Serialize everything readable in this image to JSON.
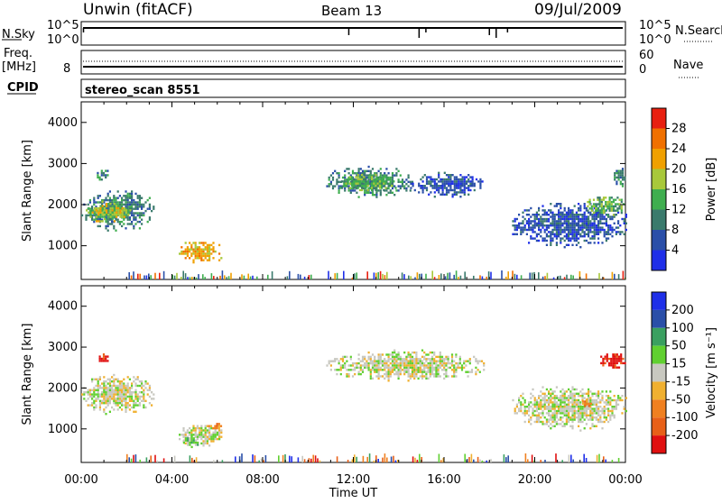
{
  "header": {
    "station": "Unwin (fitACF)",
    "beam": "Beam 13",
    "date": "09/Jul/2009"
  },
  "top_panels": {
    "noise_left_label": "N.Sky",
    "noise_right_label": "N.Search",
    "noise_scale_left_top": "10^5",
    "noise_scale_left_bottom": "10^0",
    "noise_scale_right_top": "10^5",
    "noise_scale_right_bottom": "10^0",
    "freq_label_line1": "Freq.",
    "freq_label_line2": "[MHz]",
    "freq_right_label": "Nave",
    "freq_left_tick": "8",
    "freq_right_top": "60",
    "freq_right_bottom": "0",
    "cpid_label": "CPID",
    "cpid_value": "stereo_scan 8551"
  },
  "colors": {
    "power_scale": [
      "#1f2fe8",
      "#2a4fa8",
      "#3a7a6c",
      "#3fae4f",
      "#a8c83a",
      "#f0a000",
      "#f07000",
      "#e82010"
    ],
    "velocity_scale": [
      "#1f2fe8",
      "#2a4fa8",
      "#3aa060",
      "#60d030",
      "#c8c8c0",
      "#f0b030",
      "#f08020",
      "#e86018",
      "#e01010"
    ],
    "ground_scatter": "#c8c8c0"
  },
  "chart_data": [
    {
      "type": "heatmap",
      "name": "power",
      "xlabel": "",
      "ylabel": "Slant Range [km]",
      "xlim": [
        0,
        24
      ],
      "ylim": [
        180,
        4500
      ],
      "yticks": [
        1000,
        2000,
        3000,
        4000
      ],
      "colorbar": {
        "label": "Power [dB]",
        "ticks": [
          "4",
          "8",
          "12",
          "16",
          "20",
          "24",
          "28"
        ],
        "range": [
          0,
          30
        ]
      },
      "regions": [
        {
          "t0": 0.0,
          "t1": 3.2,
          "r0": 1300,
          "r1": 2450,
          "level": 2
        },
        {
          "t0": 0.2,
          "t1": 2.2,
          "r0": 1550,
          "r1": 2150,
          "level": 4
        },
        {
          "t0": 4.3,
          "t1": 6.2,
          "r0": 550,
          "r1": 1200,
          "level": 5
        },
        {
          "t0": 10.8,
          "t1": 14.6,
          "r0": 2150,
          "r1": 3000,
          "level": 2
        },
        {
          "t0": 11.2,
          "t1": 14.0,
          "r0": 2300,
          "r1": 2800,
          "level": 3
        },
        {
          "t0": 14.5,
          "t1": 17.8,
          "r0": 2150,
          "r1": 2850,
          "level": 1
        },
        {
          "t0": 19.0,
          "t1": 24.0,
          "r0": 900,
          "r1": 2150,
          "level": 1
        },
        {
          "t0": 22.3,
          "t1": 24.0,
          "r0": 1700,
          "r1": 2300,
          "level": 3
        },
        {
          "t0": 0.6,
          "t1": 1.2,
          "r0": 2600,
          "r1": 2900,
          "level": 2
        },
        {
          "t0": 23.4,
          "t1": 24.0,
          "r0": 2400,
          "r1": 2950,
          "level": 2
        }
      ]
    },
    {
      "type": "heatmap",
      "name": "velocity",
      "xlabel": "Time UT",
      "ylabel": "Slant Range [km]",
      "xlim": [
        0,
        24
      ],
      "ylim": [
        180,
        4500
      ],
      "xticks": [
        "00:00",
        "04:00",
        "08:00",
        "12:00",
        "16:00",
        "20:00",
        "00:00"
      ],
      "yticks": [
        1000,
        2000,
        3000,
        4000
      ],
      "colorbar": {
        "label": "Velocity [m s⁻¹]",
        "ticks": [
          "200",
          "100",
          "50",
          "15",
          "-15",
          "-50",
          "-100",
          "-200"
        ],
        "range": [
          -250,
          250
        ]
      },
      "regions": [
        {
          "t0": 0.0,
          "t1": 3.2,
          "r0": 1300,
          "r1": 2450,
          "level": 4
        },
        {
          "t0": 4.3,
          "t1": 6.2,
          "r0": 550,
          "r1": 1200,
          "level": 4
        },
        {
          "t0": 4.4,
          "t1": 5.2,
          "r0": 550,
          "r1": 900,
          "level": 3
        },
        {
          "t0": 5.6,
          "t1": 6.2,
          "r0": 1000,
          "r1": 1200,
          "level": 6
        },
        {
          "t0": 10.8,
          "t1": 17.8,
          "r0": 2150,
          "r1": 3000,
          "level": 4
        },
        {
          "t0": 19.0,
          "t1": 24.0,
          "r0": 900,
          "r1": 2150,
          "level": 4
        },
        {
          "t0": 0.6,
          "t1": 1.2,
          "r0": 2600,
          "r1": 2900,
          "level": 8
        },
        {
          "t0": 22.8,
          "t1": 24.0,
          "r0": 2400,
          "r1": 2950,
          "level": 8
        },
        {
          "t0": 22.0,
          "t1": 22.5,
          "r0": 1500,
          "r1": 1800,
          "level": 6
        }
      ]
    }
  ]
}
